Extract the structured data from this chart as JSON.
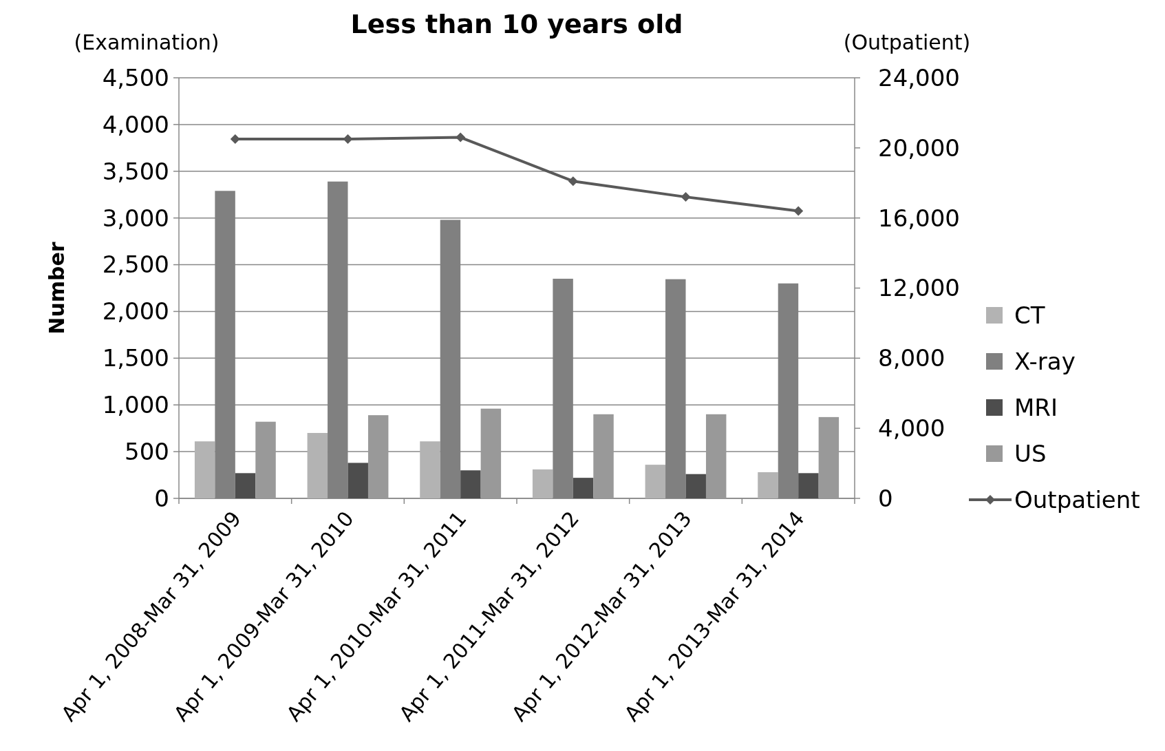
{
  "chart_data": {
    "type": "bar",
    "title": "Less than 10 years old",
    "ylabel": "Number",
    "y2label": "(Outpatient)",
    "annotations": [
      "(Examination)"
    ],
    "categories": [
      "Apr 1, 2008-Mar 31, 2009",
      "Apr 1, 2009-Mar 31, 2010",
      "Apr 1, 2010-Mar 31, 2011",
      "Apr 1, 2011-Mar 31, 2012",
      "Apr 1, 2012-Mar 31, 2013",
      "Apr 1, 2013-Mar 31, 2014"
    ],
    "series": [
      {
        "name": "CT",
        "color": "#b3b3b3",
        "values": [
          610,
          700,
          610,
          310,
          360,
          280
        ]
      },
      {
        "name": "X-ray",
        "color": "#808080",
        "values": [
          3290,
          3390,
          2980,
          2350,
          2345,
          2300
        ]
      },
      {
        "name": "MRI",
        "color": "#4d4d4d",
        "values": [
          270,
          380,
          300,
          220,
          260,
          270
        ]
      },
      {
        "name": "US",
        "color": "#999999",
        "values": [
          820,
          890,
          960,
          900,
          900,
          870
        ]
      },
      {
        "name": "Outpatient",
        "type": "line",
        "axis": "y2",
        "color": "#595959",
        "marker": "diamond",
        "values": [
          20500,
          20500,
          20600,
          18100,
          17200,
          16400
        ]
      }
    ],
    "ylim": [
      0,
      4500
    ],
    "yticks": [
      {
        "value": 0,
        "label": "0"
      },
      {
        "value": 500,
        "label": "500"
      },
      {
        "value": 1000,
        "label": "1,000"
      },
      {
        "value": 1500,
        "label": "1,500"
      },
      {
        "value": 2000,
        "label": "2,000"
      },
      {
        "value": 2500,
        "label": "2,500"
      },
      {
        "value": 3000,
        "label": "3,000"
      },
      {
        "value": 3500,
        "label": "3,500"
      },
      {
        "value": 4000,
        "label": "4,000"
      },
      {
        "value": 4500,
        "label": "4,500"
      }
    ],
    "y2lim": [
      0,
      24000
    ],
    "y2ticks": [
      {
        "value": 0,
        "label": "0"
      },
      {
        "value": 4000,
        "label": "4,000"
      },
      {
        "value": 8000,
        "label": "8,000"
      },
      {
        "value": 12000,
        "label": "12,000"
      },
      {
        "value": 16000,
        "label": "16,000"
      },
      {
        "value": 20000,
        "label": "20,000"
      },
      {
        "value": 24000,
        "label": "24,000"
      }
    ],
    "grid": "y",
    "legend": "right"
  }
}
